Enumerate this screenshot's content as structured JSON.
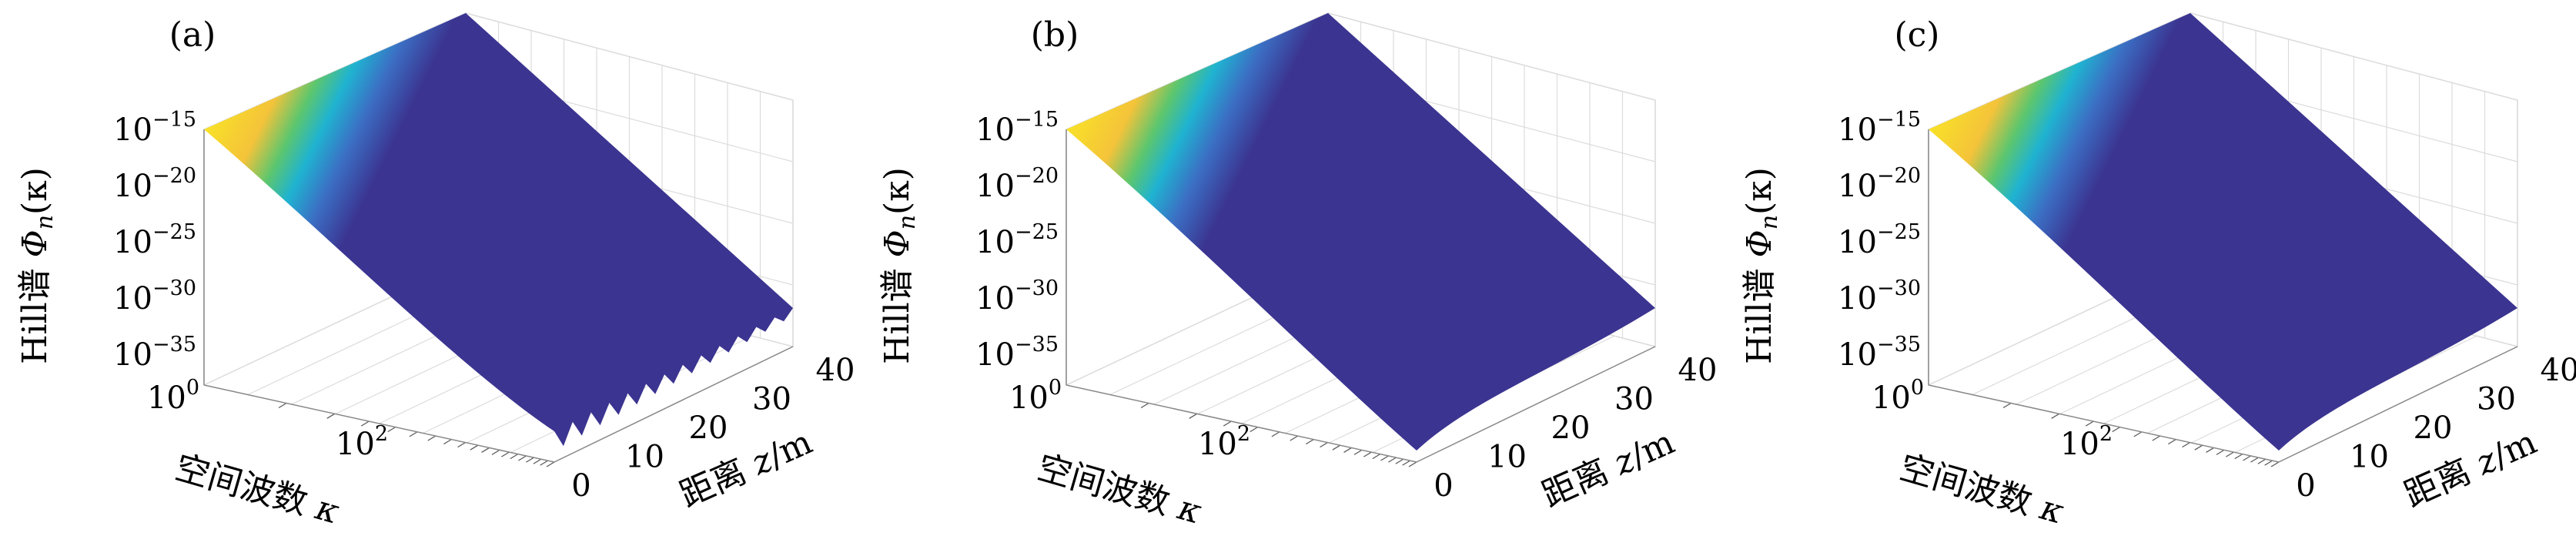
{
  "figure": {
    "z_label_prefix": "距离 ",
    "z_label_var": "z",
    "z_label_unit": "/m",
    "kappa_label_prefix": "空间波数 ",
    "kappa_label_var": "κ",
    "phi_label_prefix": "Hill谱 ",
    "phi_label_var": "Φ",
    "phi_label_sub": "n",
    "phi_label_arg": "(κ)"
  },
  "colors": {
    "low": "#3b3490",
    "cyan": "#1fb3d1",
    "green": "#5cc66e",
    "yellow": "#f9e227",
    "grid": "#dcdcdc",
    "edge": "#ffffff"
  },
  "chart_data": [
    {
      "type": "surface",
      "panel_label": "(a)",
      "z_ticks": [
        "0",
        "10",
        "20",
        "30",
        "40"
      ],
      "z_range": [
        0,
        40
      ],
      "kappa_ticks": [
        {
          "base": "10",
          "exp": "0"
        },
        {
          "base": "10",
          "exp": "2"
        }
      ],
      "kappa_scale": "log",
      "phi_ticks": [
        {
          "base": "10",
          "exp": "−15"
        },
        {
          "base": "10",
          "exp": "−20"
        },
        {
          "base": "10",
          "exp": "−25"
        },
        {
          "base": "10",
          "exp": "−30"
        },
        {
          "base": "10",
          "exp": "−35"
        }
      ],
      "phi_scale": "log",
      "phi_range": [
        -35,
        -15
      ],
      "edge_jagged": true,
      "grid": true
    },
    {
      "type": "surface",
      "panel_label": "(b)",
      "z_ticks": [
        "0",
        "10",
        "20",
        "30",
        "40"
      ],
      "z_range": [
        0,
        40
      ],
      "kappa_ticks": [
        {
          "base": "10",
          "exp": "0"
        },
        {
          "base": "10",
          "exp": "2"
        }
      ],
      "kappa_scale": "log",
      "phi_ticks": [
        {
          "base": "10",
          "exp": "−15"
        },
        {
          "base": "10",
          "exp": "−20"
        },
        {
          "base": "10",
          "exp": "−25"
        },
        {
          "base": "10",
          "exp": "−30"
        },
        {
          "base": "10",
          "exp": "−35"
        }
      ],
      "phi_scale": "log",
      "phi_range": [
        -35,
        -15
      ],
      "edge_jagged": false,
      "grid": true
    },
    {
      "type": "surface",
      "panel_label": "(c)",
      "z_ticks": [
        "0",
        "10",
        "20",
        "30",
        "40"
      ],
      "z_range": [
        0,
        40
      ],
      "kappa_ticks": [
        {
          "base": "10",
          "exp": "0"
        },
        {
          "base": "10",
          "exp": "2"
        }
      ],
      "kappa_scale": "log",
      "phi_ticks": [
        {
          "base": "10",
          "exp": "−15"
        },
        {
          "base": "10",
          "exp": "−20"
        },
        {
          "base": "10",
          "exp": "−25"
        },
        {
          "base": "10",
          "exp": "−30"
        },
        {
          "base": "10",
          "exp": "−35"
        }
      ],
      "phi_scale": "log",
      "phi_range": [
        -35,
        -15
      ],
      "edge_jagged": false,
      "grid": true
    }
  ]
}
